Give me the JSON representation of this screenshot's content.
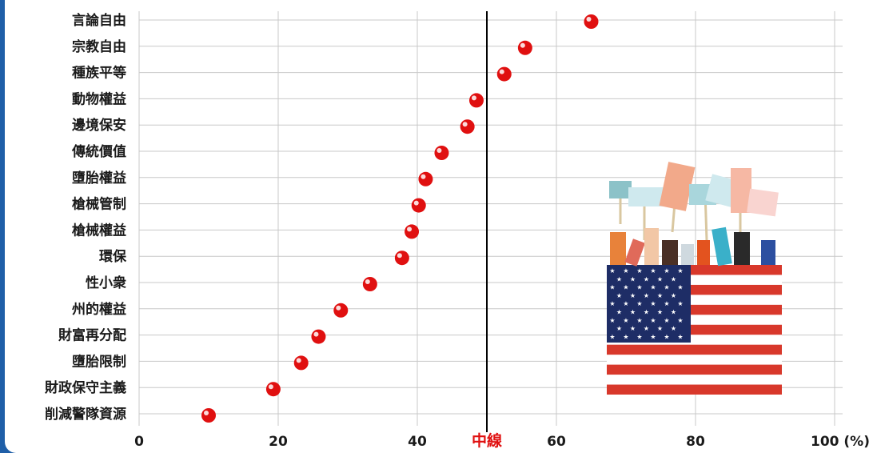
{
  "chart_data": {
    "type": "scatter",
    "categories": [
      "言論自由",
      "宗教自由",
      "種族平等",
      "動物權益",
      "邊境保安",
      "傳統價值",
      "墮胎權益",
      "槍械管制",
      "槍械權益",
      "環保",
      "性小衆",
      "州的權益",
      "財富再分配",
      "墮胎限制",
      "財政保守主義",
      "削減警隊資源"
    ],
    "values": [
      65,
      55.5,
      52.5,
      48.5,
      47.2,
      43.5,
      41.2,
      40.2,
      39.2,
      37.8,
      33.2,
      29,
      25.8,
      23.3,
      19.3,
      10
    ],
    "x_ticks": [
      "0",
      "20",
      "40",
      "60",
      "80",
      "100 (%)"
    ],
    "xlim": [
      0,
      100
    ],
    "midline": {
      "value": 50,
      "label": "中線"
    },
    "grid": true,
    "colors": {
      "marker": "#e01010",
      "midline_label": "#e01010",
      "midline": "#000000",
      "frame": "#1f5fa8"
    }
  },
  "illustration": {
    "name": "protest-hands-with-us-flag"
  }
}
